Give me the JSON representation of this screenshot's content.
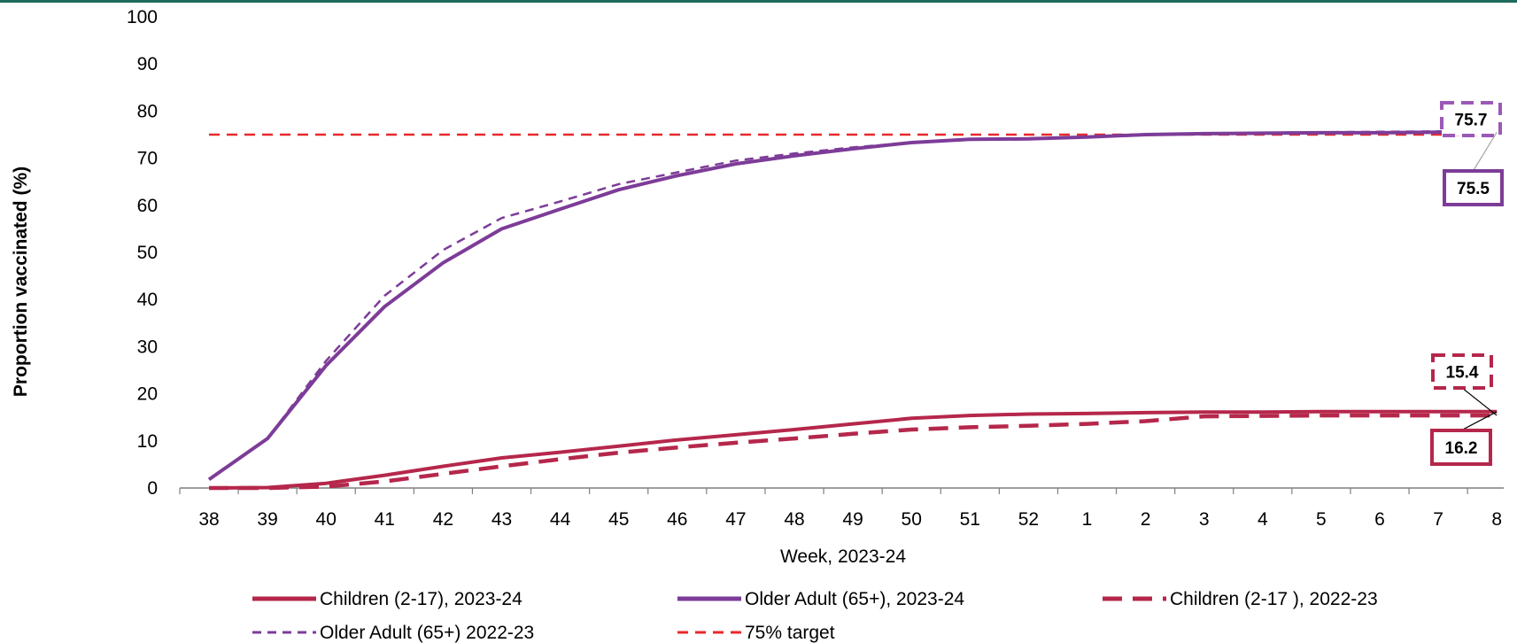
{
  "chart_data": {
    "type": "line",
    "title": "",
    "xlabel": "Week, 2023-24",
    "ylabel": "Proportion vaccinated (%)",
    "ylim": [
      0,
      100
    ],
    "yticks": [
      "0",
      "10",
      "20",
      "30",
      "40",
      "50",
      "60",
      "70",
      "80",
      "90",
      "100"
    ],
    "categories": [
      "38",
      "39",
      "40",
      "41",
      "42",
      "43",
      "44",
      "45",
      "46",
      "47",
      "48",
      "49",
      "50",
      "51",
      "52",
      "1",
      "2",
      "3",
      "4",
      "5",
      "6",
      "7",
      "8"
    ],
    "grid": false,
    "legend_position": "bottom",
    "series": [
      {
        "name": "Children (2-17), 2023-24",
        "color": "#b5274b",
        "style": "solid",
        "values": [
          0.0,
          0.1,
          1.0,
          2.7,
          4.6,
          6.4,
          7.6,
          8.9,
          10.2,
          11.3,
          12.4,
          13.6,
          14.8,
          15.4,
          15.7,
          15.8,
          16.0,
          16.1,
          16.1,
          16.2,
          16.2,
          16.2,
          16.2
        ]
      },
      {
        "name": "Older Adult (65+), 2023-24",
        "color": "#7d3c98",
        "style": "solid",
        "values": [
          1.8,
          10.5,
          26.0,
          38.5,
          47.8,
          55.0,
          59.2,
          63.3,
          66.3,
          68.8,
          70.5,
          72.0,
          73.3,
          74.0,
          74.1,
          74.5,
          75.0,
          75.2,
          75.3,
          75.4,
          75.4,
          75.5,
          75.5
        ]
      },
      {
        "name": "Children (2-17 ), 2022-23",
        "color": "#b5274b",
        "style": "long-dash",
        "values": [
          0.0,
          0.0,
          0.3,
          1.4,
          3.0,
          4.6,
          6.1,
          7.5,
          8.6,
          9.6,
          10.5,
          11.5,
          12.4,
          12.9,
          13.2,
          13.6,
          14.2,
          15.2,
          15.3,
          15.4,
          15.4,
          15.4,
          15.4
        ]
      },
      {
        "name": "Older Adult (65+) 2022-23",
        "color": "#7d3c98",
        "style": "short-dash",
        "values": [
          1.8,
          10.5,
          27.0,
          40.8,
          50.5,
          57.3,
          60.8,
          64.5,
          67.0,
          69.5,
          71.0,
          72.3,
          73.3,
          73.9,
          74.1,
          74.5,
          74.9,
          75.2,
          75.4,
          75.5,
          75.6,
          75.7,
          75.7
        ]
      },
      {
        "name": "75% target",
        "color": "#e8282b",
        "style": "dash",
        "values": [
          75,
          75,
          75,
          75,
          75,
          75,
          75,
          75,
          75,
          75,
          75,
          75,
          75,
          75,
          75,
          75,
          75,
          75,
          75,
          75,
          75,
          75,
          75
        ]
      }
    ],
    "annotations": [
      {
        "text": "75.7",
        "series": "Older Adult (65+) 2022-23",
        "color": "#9b59b6",
        "border": "dashed"
      },
      {
        "text": "75.5",
        "series": "Older Adult (65+), 2023-24",
        "color": "#7d3c98",
        "border": "solid"
      },
      {
        "text": "15.4",
        "series": "Children (2-17 ), 2022-23",
        "color": "#b5274b",
        "border": "dashed"
      },
      {
        "text": "16.2",
        "series": "Children (2-17), 2023-24",
        "color": "#b5274b",
        "border": "solid"
      }
    ]
  }
}
